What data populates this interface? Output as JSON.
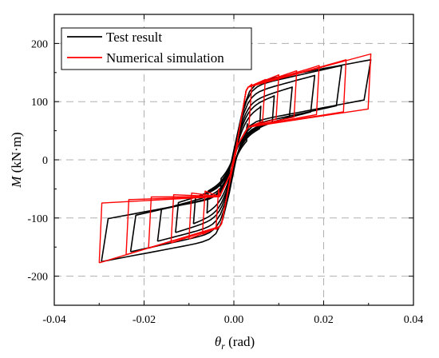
{
  "chart_data": {
    "type": "line",
    "title": "",
    "xlabel_symbol": "θ",
    "xlabel_sub": "r",
    "xlabel_unit": " (rad)",
    "ylabel_symbol": "M",
    "ylabel_unit": " (kN·m)",
    "xlim": [
      -0.04,
      0.04
    ],
    "ylim": [
      -250,
      250
    ],
    "xticks": [
      -0.04,
      -0.02,
      0.0,
      0.02,
      0.04
    ],
    "xtick_labels": [
      "-0.04",
      "-0.02",
      "0.00",
      "0.02",
      "0.04"
    ],
    "yticks": [
      -200,
      -100,
      0,
      100,
      200
    ],
    "ytick_labels": [
      "-200",
      "-100",
      "0",
      "100",
      "200"
    ],
    "grid": true,
    "legend_position": "top-left",
    "colors": {
      "test": "#000000",
      "sim": "#ff0000",
      "grid": "#b0b0b0"
    },
    "series": [
      {
        "name": "Test result",
        "color": "#000000",
        "cycles": [
          {
            "theta_max": 0.003,
            "m_max": 62,
            "theta_min": -0.003,
            "m_min": -62
          },
          {
            "theta_max": 0.006,
            "m_max": 92,
            "theta_min": -0.006,
            "m_min": -92
          },
          {
            "theta_max": 0.009,
            "m_max": 110,
            "theta_min": -0.009,
            "m_min": -110
          },
          {
            "theta_max": 0.013,
            "m_max": 125,
            "theta_min": -0.013,
            "m_min": -125
          },
          {
            "theta_max": 0.018,
            "m_max": 145,
            "theta_min": -0.017,
            "m_min": -140
          },
          {
            "theta_max": 0.024,
            "m_max": 162,
            "theta_min": -0.023,
            "m_min": -158
          },
          {
            "theta_max": 0.0305,
            "m_max": 172,
            "theta_min": -0.0295,
            "m_min": -175
          }
        ]
      },
      {
        "name": "Numerical simulation",
        "color": "#ff0000",
        "cycles": [
          {
            "theta_max": 0.004,
            "m_max": 130,
            "theta_min": -0.004,
            "m_min": -120
          },
          {
            "theta_max": 0.007,
            "m_max": 138,
            "theta_min": -0.007,
            "m_min": -128
          },
          {
            "theta_max": 0.01,
            "m_max": 146,
            "theta_min": -0.01,
            "m_min": -136
          },
          {
            "theta_max": 0.014,
            "m_max": 153,
            "theta_min": -0.014,
            "m_min": -143
          },
          {
            "theta_max": 0.019,
            "m_max": 162,
            "theta_min": -0.019,
            "m_min": -152
          },
          {
            "theta_max": 0.025,
            "m_max": 172,
            "theta_min": -0.024,
            "m_min": -163
          },
          {
            "theta_max": 0.0305,
            "m_max": 182,
            "theta_min": -0.03,
            "m_min": -177
          }
        ]
      }
    ]
  }
}
